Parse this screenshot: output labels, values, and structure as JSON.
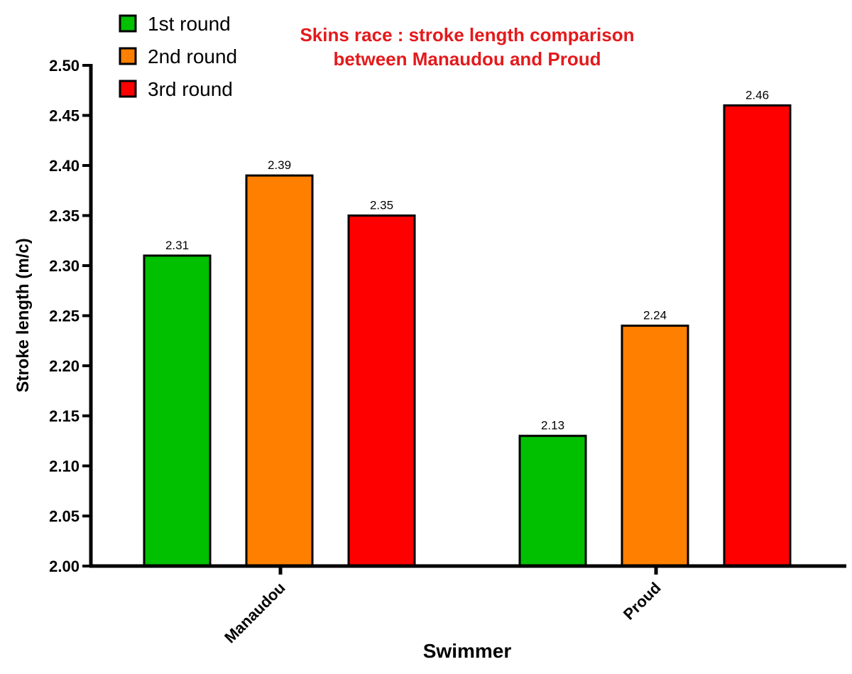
{
  "chart_data": {
    "type": "bar",
    "title_lines": [
      "Skins race : stroke length comparison",
      "between Manaudou and Proud"
    ],
    "title_color": "#e31a1c",
    "xlabel": "Swimmer",
    "ylabel": "Stroke length (m/c)",
    "categories": [
      "Manaudou",
      "Proud"
    ],
    "series": [
      {
        "name": "1st round",
        "color": "#00c000",
        "values": [
          2.31,
          2.13
        ],
        "labels": [
          "2.31",
          "2.13"
        ]
      },
      {
        "name": "2nd round",
        "color": "#ff8000",
        "values": [
          2.39,
          2.24
        ],
        "labels": [
          "2.39",
          "2.24"
        ]
      },
      {
        "name": "3rd round",
        "color": "#ff0000",
        "values": [
          2.35,
          2.46
        ],
        "labels": [
          "2.35",
          "2.46"
        ]
      }
    ],
    "ylim": [
      2.0,
      2.5
    ],
    "yticks": [
      2.0,
      2.05,
      2.1,
      2.15,
      2.2,
      2.25,
      2.3,
      2.35,
      2.4,
      2.45,
      2.5
    ],
    "ytick_labels": [
      "2.00",
      "2.05",
      "2.10",
      "2.15",
      "2.20",
      "2.25",
      "2.30",
      "2.35",
      "2.40",
      "2.45",
      "2.50"
    ],
    "grid": false,
    "legend_position": "top-left"
  }
}
